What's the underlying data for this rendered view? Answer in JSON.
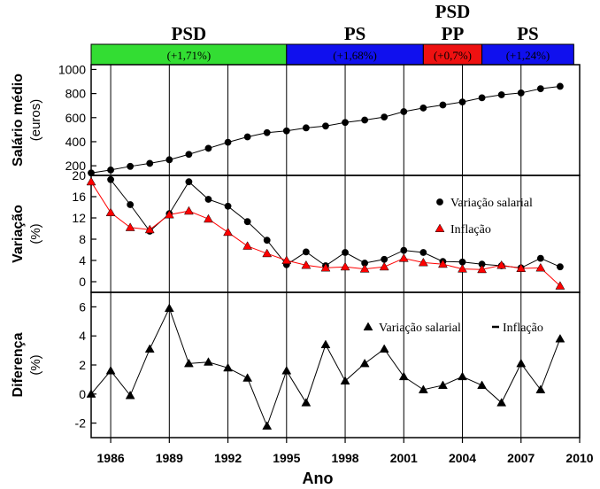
{
  "chart_data": {
    "type": "line",
    "xlabel": "Ano",
    "xlim": [
      1985,
      2010
    ],
    "x_ticks": [
      1986,
      1989,
      1992,
      1995,
      1998,
      2001,
      2004,
      2007,
      2010
    ],
    "x_tick_labels": [
      "1986",
      "1989",
      "1992",
      "1995",
      "1998",
      "2001",
      "2004",
      "2007",
      "2010"
    ],
    "periods": [
      {
        "party": "PSD",
        "growth": "(+1,71%)",
        "start": 1985,
        "end": 1995,
        "color": "#33dd33"
      },
      {
        "party": "PS",
        "growth": "(+1,68%)",
        "start": 1995,
        "end": 2002,
        "color": "#1010ee"
      },
      {
        "party": "PSD\nPP",
        "growth": "(+0,7%)",
        "start": 2002,
        "end": 2005,
        "color": "#ee1111"
      },
      {
        "party": "PS",
        "growth": "(+1,24%)",
        "start": 2005,
        "end": 2009.7,
        "color": "#1010ee"
      }
    ],
    "panels": [
      {
        "id": "salario",
        "ylabel": "Salário médio",
        "ylabel2": "(euros)",
        "ylim": [
          120,
          1040
        ],
        "y_ticks": [
          200,
          400,
          600,
          800,
          1000
        ],
        "y_tick_labels": [
          "200",
          "400",
          "600",
          "800",
          "1000"
        ],
        "series": [
          {
            "marker": "circle",
            "color": "#000000",
            "x": [
              1985,
              1986,
              1987,
              1988,
              1989,
              1990,
              1991,
              1992,
              1993,
              1994,
              1995,
              1996,
              1997,
              1998,
              1999,
              2000,
              2001,
              2002,
              2003,
              2004,
              2005,
              2006,
              2007,
              2008,
              2009
            ],
            "y": [
              140,
              165,
              195,
              220,
              250,
              295,
              345,
              395,
              440,
              475,
              490,
              515,
              530,
              560,
              580,
              605,
              650,
              680,
              705,
              730,
              765,
              790,
              805,
              840,
              860
            ]
          }
        ]
      },
      {
        "id": "variacao",
        "ylabel": "Variação",
        "ylabel2": "(%)",
        "ylim": [
          -2,
          20
        ],
        "y_ticks": [
          0,
          4,
          8,
          12,
          16,
          20
        ],
        "y_tick_labels": [
          "0",
          "4",
          "8",
          "12",
          "16",
          "20"
        ],
        "legend": [
          {
            "label": "Variação salarial",
            "marker": "circle",
            "color": "#000000"
          },
          {
            "label": "Inflação",
            "marker": "triangle",
            "color": "#ff0000"
          }
        ],
        "series": [
          {
            "name": "Variação salarial",
            "marker": "circle",
            "color": "#000000",
            "x": [
              1986,
              1987,
              1988,
              1989,
              1990,
              1991,
              1992,
              1993,
              1994,
              1995,
              1996,
              1997,
              1998,
              1999,
              2000,
              2001,
              2002,
              2003,
              2004,
              2005,
              2006,
              2007,
              2008,
              2009
            ],
            "y": [
              19.2,
              14.5,
              9.5,
              12.8,
              18.8,
              15.5,
              14.2,
              11.3,
              7.8,
              3.2,
              5.6,
              3.0,
              5.5,
              3.5,
              4.2,
              5.9,
              5.5,
              3.8,
              3.7,
              3.3,
              3.0,
              2.6,
              4.4,
              2.8
            ]
          },
          {
            "name": "Inflação",
            "marker": "triangle",
            "color": "#ff0000",
            "x": [
              1985,
              1986,
              1987,
              1988,
              1989,
              1990,
              1991,
              1992,
              1993,
              1994,
              1995,
              1996,
              1997,
              1998,
              1999,
              2000,
              2001,
              2002,
              2003,
              2004,
              2005,
              2006,
              2007,
              2008,
              2009
            ],
            "y": [
              18.8,
              13.0,
              10.2,
              9.8,
              12.6,
              13.3,
              11.8,
              9.3,
              6.7,
              5.3,
              4.0,
              3.1,
              2.6,
              2.8,
              2.4,
              2.8,
              4.4,
              3.6,
              3.3,
              2.4,
              2.3,
              3.1,
              2.5,
              2.6,
              -0.8
            ]
          }
        ]
      },
      {
        "id": "diferenca",
        "ylabel": "Diferença",
        "ylabel2": "(%)",
        "ylim": [
          -3,
          7
        ],
        "y_ticks": [
          -2,
          0,
          2,
          4,
          6
        ],
        "y_tick_labels": [
          "-2",
          "0",
          "2",
          "4",
          "6"
        ],
        "legend": [
          {
            "label": "Variação salarial",
            "marker": "triangle",
            "color": "#000000"
          },
          {
            "label": "Inflação",
            "marker": "dash",
            "color": "#000000"
          }
        ],
        "series": [
          {
            "marker": "triangle",
            "color": "#000000",
            "x": [
              1985,
              1986,
              1987,
              1988,
              1989,
              1990,
              1991,
              1992,
              1993,
              1994,
              1995,
              1996,
              1997,
              1998,
              1999,
              2000,
              2001,
              2002,
              2003,
              2004,
              2005,
              2006,
              2007,
              2008,
              2009
            ],
            "y": [
              0.0,
              1.6,
              -0.1,
              3.1,
              5.9,
              2.1,
              2.2,
              1.8,
              1.1,
              -2.2,
              1.6,
              -0.6,
              3.4,
              0.9,
              2.1,
              3.1,
              1.2,
              0.3,
              0.6,
              1.2,
              0.6,
              -0.6,
              2.1,
              0.3,
              3.8
            ]
          }
        ]
      }
    ]
  }
}
